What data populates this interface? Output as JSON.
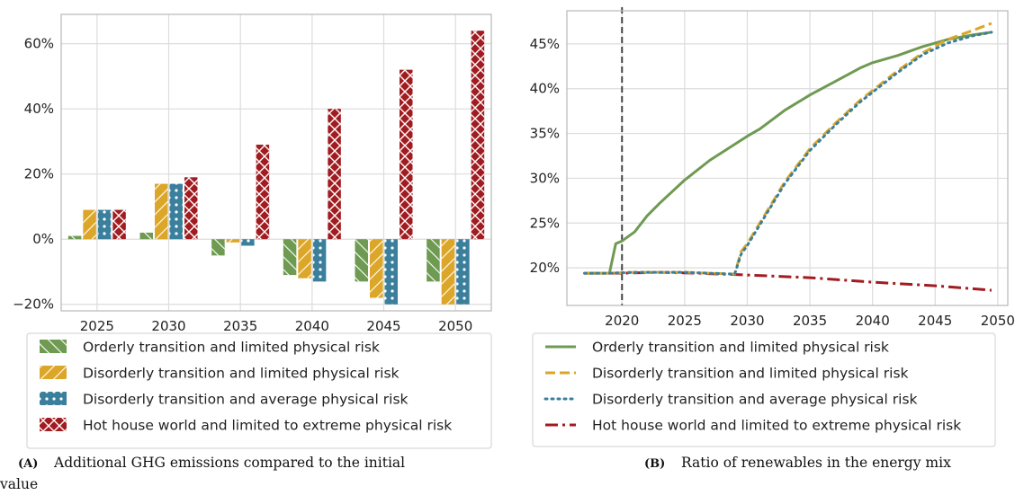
{
  "chart_data": [
    {
      "type": "bar",
      "categories": [
        "2025",
        "2030",
        "2035",
        "2040",
        "2045",
        "2050"
      ],
      "ylim": [
        -22,
        69
      ],
      "yticks": [
        -20,
        0,
        20,
        40,
        60
      ],
      "ytick_labels": [
        "−20%",
        "0%",
        "20%",
        "40%",
        "60%"
      ],
      "grid": true,
      "legend_position": "below",
      "series": [
        {
          "name": "Orderly transition and limited physical risk",
          "color": "#6f9a52",
          "hatch": "backslash",
          "values": [
            1,
            2,
            -5,
            -11,
            -13,
            -13
          ]
        },
        {
          "name": "Disorderly transition and limited physical risk",
          "color": "#dca629",
          "hatch": "slash",
          "values": [
            9,
            17,
            -1,
            -12,
            -18,
            -20
          ]
        },
        {
          "name": "Disorderly transition and average physical risk",
          "color": "#3a7f9c",
          "hatch": "dots",
          "values": [
            9,
            17,
            -2,
            -13,
            -20,
            -20
          ]
        },
        {
          "name": "Hot house world and limited to extreme physical risk",
          "color": "#a01c20",
          "hatch": "cross",
          "values": [
            9,
            19,
            29,
            40,
            52,
            64
          ]
        }
      ],
      "caption_tag": "(A)",
      "caption_lines": [
        "Additional GHG emissions compared to the initial",
        "value"
      ]
    },
    {
      "type": "line",
      "xlim": [
        2015.6,
        2050.8
      ],
      "ylim": [
        15.8,
        48.7
      ],
      "xticks": [
        2020,
        2025,
        2030,
        2035,
        2040,
        2045,
        2050
      ],
      "yticks": [
        20,
        25,
        30,
        35,
        40,
        45
      ],
      "ytick_labels": [
        "20%",
        "25%",
        "30%",
        "35%",
        "40%",
        "45%"
      ],
      "vline_x": 2020,
      "grid": true,
      "legend_position": "below",
      "series": [
        {
          "name": "Orderly transition and limited physical risk",
          "color": "#6f9a52",
          "style": "solid",
          "x": [
            2017,
            2019,
            2019.5,
            2020,
            2021,
            2022,
            2023,
            2025,
            2027,
            2030,
            2031,
            2033,
            2035,
            2037,
            2039,
            2040,
            2042,
            2044,
            2046,
            2048,
            2049.5
          ],
          "y": [
            19.4,
            19.4,
            22.7,
            23.0,
            24.0,
            25.8,
            27.2,
            29.8,
            32.0,
            34.7,
            35.5,
            37.6,
            39.3,
            40.8,
            42.3,
            42.9,
            43.7,
            44.7,
            45.5,
            46.0,
            46.3
          ]
        },
        {
          "name": "Disorderly transition and limited physical risk",
          "color": "#dca629",
          "style": "dashed",
          "x": [
            2017,
            2019,
            2021,
            2023,
            2025,
            2027,
            2029,
            2029.5,
            2030,
            2031,
            2033,
            2035,
            2037,
            2039,
            2040,
            2042,
            2044,
            2046,
            2048,
            2049.5
          ],
          "y": [
            19.4,
            19.4,
            19.5,
            19.5,
            19.5,
            19.4,
            19.3,
            21.8,
            22.7,
            25.0,
            29.6,
            33.3,
            36.1,
            38.7,
            39.8,
            42.0,
            44.0,
            45.5,
            46.5,
            47.3
          ]
        },
        {
          "name": "Disorderly transition and average physical risk",
          "color": "#3a7f9c",
          "style": "dotted",
          "x": [
            2017,
            2019,
            2021,
            2023,
            2025,
            2027,
            2029,
            2029.5,
            2030,
            2031,
            2033,
            2035,
            2037,
            2039,
            2040,
            2042,
            2044,
            2046,
            2048,
            2049.5
          ],
          "y": [
            19.4,
            19.4,
            19.5,
            19.5,
            19.5,
            19.4,
            19.3,
            21.5,
            22.5,
            24.8,
            29.4,
            33.1,
            35.9,
            38.5,
            39.6,
            41.8,
            43.8,
            45.1,
            45.9,
            46.3
          ]
        },
        {
          "name": "Hot house world and limited to extreme physical risk",
          "color": "#a01c20",
          "style": "dashdot",
          "x": [
            2017,
            2020,
            2023,
            2026,
            2030,
            2035,
            2040,
            2045,
            2049.5
          ],
          "y": [
            19.4,
            19.4,
            19.5,
            19.4,
            19.2,
            18.9,
            18.4,
            18.0,
            17.5
          ]
        }
      ],
      "caption_tag": "(B)",
      "caption_lines": [
        "Ratio of renewables in the energy mix"
      ]
    }
  ]
}
